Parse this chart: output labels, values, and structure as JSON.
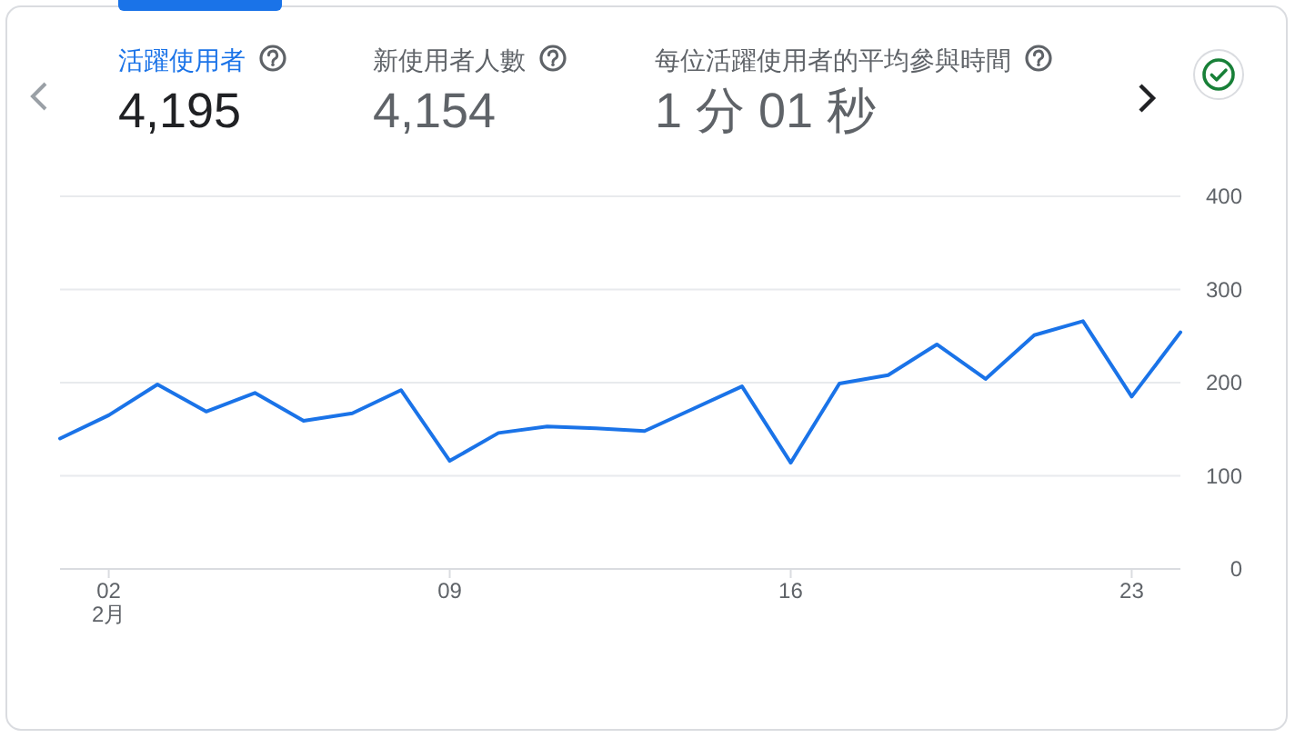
{
  "chart_data": {
    "type": "line",
    "annotations": [
      "活躍使用者",
      "4,195",
      "新使用者人數",
      "4,154",
      "每位活躍使用者的平均參與時間",
      "1 分 01 秒"
    ],
    "x": [
      "--02-01",
      "--02-02",
      "--02-03",
      "--02-04",
      "--02-05",
      "--02-06",
      "--02-07",
      "--02-08",
      "--02-09",
      "--02-10",
      "--02-11",
      "--02-12",
      "--02-13",
      "--02-14",
      "--02-15",
      "--02-16",
      "--02-17",
      "--02-18",
      "--02-19",
      "--02-20",
      "--02-21",
      "--02-22",
      "--02-23",
      "--02-24"
    ],
    "series": [
      {
        "color": "#1a73e8",
        "values": [
          140,
          165,
          198,
          169,
          189,
          159,
          167,
          192,
          116,
          146,
          153,
          151,
          148,
          172,
          196,
          114,
          199,
          208,
          241,
          204,
          251,
          266,
          185,
          254
        ]
      }
    ],
    "xlim": [
      "--02-01",
      "--02-24"
    ],
    "xticks": [
      {
        "value": "--02-02",
        "label": "02\n2月"
      },
      {
        "value": "--02-09",
        "label": "09"
      },
      {
        "value": "--02-16",
        "label": "16"
      },
      {
        "value": "--02-23",
        "label": "23"
      }
    ],
    "ylim": [
      0,
      400
    ],
    "yticks": [
      0,
      100,
      200,
      300,
      400
    ],
    "grid": "y"
  }
}
